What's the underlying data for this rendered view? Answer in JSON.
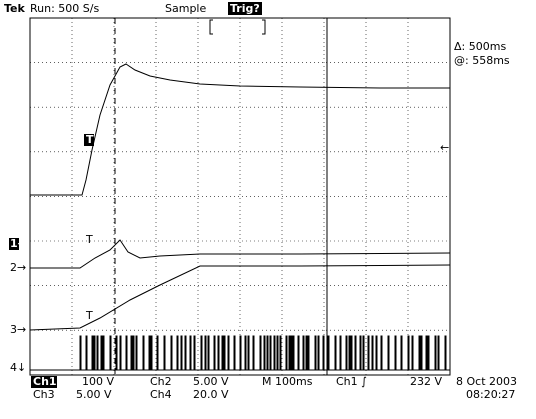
{
  "header": {
    "brand": "Tek",
    "run": "Run: 500 S/s",
    "mode": "Sample",
    "trigger_state": "Trig?"
  },
  "cursor_readout": {
    "delta": "Δ: 500ms",
    "at": "@: 558ms"
  },
  "trace_markers": {
    "trigger": "T",
    "ch1_ref": "1→",
    "ch2_ref": "2→",
    "ch3_ref": "3→",
    "ch4_ref": "4↓",
    "level": "←"
  },
  "status": {
    "row1": {
      "ch1": "Ch1",
      "ch1_scale": "100 V",
      "ch2": "Ch2",
      "ch2_scale": "5.00 V",
      "timebase": "M 100ms",
      "trigger_source": "Ch1 ∫",
      "trigger_level": "232 V",
      "date": "8 Oct 2003"
    },
    "row2": {
      "ch3": "Ch3",
      "ch3_scale": "5.00 V",
      "ch4": "Ch4",
      "ch4_scale": "20.0 V",
      "time": "08:20:27"
    }
  }
}
